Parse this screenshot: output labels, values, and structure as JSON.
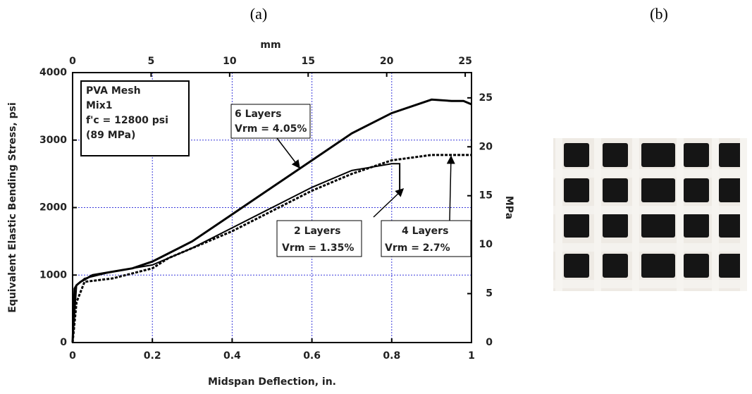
{
  "panel_labels": [
    "(a)",
    "(b)"
  ],
  "chart_data": {
    "type": "line",
    "xlabel": "Midspan Deflection, in.",
    "ylabel": "Equivalent Elastic Bending Stress, psi",
    "x2label": "mm",
    "y2label": "MPa",
    "xlim": [
      0,
      1
    ],
    "xticks": [
      0,
      0.2,
      0.4,
      0.6,
      0.8,
      1
    ],
    "ylim": [
      0,
      4000
    ],
    "yticks": [
      0,
      1000,
      2000,
      3000,
      4000
    ],
    "x2lim": [
      0,
      25.4
    ],
    "x2ticks": [
      0,
      5,
      10,
      15,
      20,
      25
    ],
    "y2lim": [
      0,
      27.58
    ],
    "y2ticks": [
      0,
      5,
      10,
      15,
      20,
      25
    ],
    "grid": true,
    "grid_color": "#3a3adb",
    "box": [
      "PVA Mesh",
      "Mix1",
      "f'c = 12800 psi",
      "(89 MPa)"
    ],
    "series": [
      {
        "name": "6 Layers",
        "annotation": "Vrm = 4.05%",
        "color": "#000000",
        "style": "solid",
        "width": 3,
        "x": [
          0,
          0.005,
          0.01,
          0.02,
          0.05,
          0.1,
          0.15,
          0.2,
          0.25,
          0.3,
          0.4,
          0.5,
          0.6,
          0.7,
          0.8,
          0.9,
          0.95,
          0.98,
          1.0
        ],
        "values": [
          0,
          800,
          850,
          900,
          1000,
          1050,
          1100,
          1200,
          1350,
          1500,
          1900,
          2300,
          2700,
          3100,
          3400,
          3600,
          3580,
          3580,
          3530
        ]
      },
      {
        "name": "2 Layers",
        "annotation": "Vrm = 1.35%",
        "color": "#000000",
        "style": "solid",
        "width": 2,
        "x": [
          0,
          0.01,
          0.03,
          0.1,
          0.2,
          0.3,
          0.4,
          0.5,
          0.6,
          0.7,
          0.8,
          0.82,
          0.82
        ],
        "values": [
          0,
          850,
          950,
          1050,
          1150,
          1400,
          1700,
          2000,
          2300,
          2550,
          2650,
          2650,
          2200
        ]
      },
      {
        "name": "4 Layers",
        "annotation": "Vrm = 2.7%",
        "color": "#000000",
        "style": "dashed",
        "width": 3,
        "x": [
          0,
          0.01,
          0.03,
          0.1,
          0.2,
          0.24,
          0.3,
          0.4,
          0.5,
          0.6,
          0.7,
          0.8,
          0.9,
          1.0
        ],
        "values": [
          0,
          600,
          900,
          950,
          1100,
          1250,
          1400,
          1650,
          1950,
          2250,
          2500,
          2700,
          2780,
          2780
        ]
      }
    ]
  }
}
